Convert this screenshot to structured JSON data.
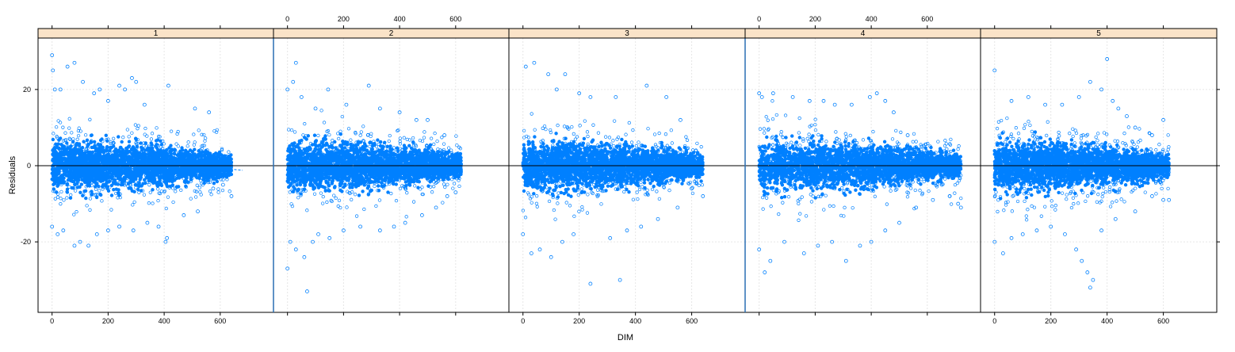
{
  "chart_data": {
    "type": "scatter",
    "xlabel": "DIM",
    "ylabel": "Residuals",
    "xlim": [
      -50,
      790
    ],
    "ylim": [
      -38.5,
      33.5
    ],
    "x_ticks": [
      0,
      200,
      400,
      600
    ],
    "y_ticks": [
      -20,
      0,
      20
    ],
    "reference_line_y": 0,
    "grid": true,
    "colors": {
      "points": "#0080ff",
      "strip": "#fae3c8",
      "grid": "#e6e6e6",
      "panel_border": "#000000",
      "panel_divider_accent": "#2a6fb3"
    },
    "panels": [
      {
        "label": "1",
        "x_max": 640,
        "points": [
          [
            0,
            29
          ],
          [
            3,
            25
          ],
          [
            10,
            20
          ],
          [
            30,
            20
          ],
          [
            55,
            26
          ],
          [
            80,
            27
          ],
          [
            110,
            22
          ],
          [
            150,
            19
          ],
          [
            170,
            20
          ],
          [
            200,
            17
          ],
          [
            240,
            21
          ],
          [
            260,
            20
          ],
          [
            285,
            23
          ],
          [
            300,
            22
          ],
          [
            330,
            16
          ],
          [
            415,
            21
          ],
          [
            510,
            15
          ],
          [
            560,
            14
          ],
          [
            0,
            -16
          ],
          [
            20,
            -18
          ],
          [
            40,
            -17
          ],
          [
            80,
            -21
          ],
          [
            100,
            -20
          ],
          [
            130,
            -21
          ],
          [
            160,
            -18
          ],
          [
            200,
            -17
          ],
          [
            240,
            -16
          ],
          [
            290,
            -17
          ],
          [
            340,
            -15
          ],
          [
            380,
            -16
          ],
          [
            405,
            -20
          ],
          [
            410,
            -19
          ],
          [
            470,
            -13
          ],
          [
            520,
            -12
          ],
          [
            575,
            -6
          ],
          [
            610,
            -5
          ],
          [
            640,
            -8
          ]
        ],
        "trend": [
          [
            0,
            0
          ],
          [
            300,
            0
          ],
          [
            500,
            0
          ],
          [
            620,
            -0.8
          ],
          [
            680,
            -1.2
          ]
        ]
      },
      {
        "label": "2",
        "x_max": 620,
        "points": [
          [
            0,
            20
          ],
          [
            20,
            22
          ],
          [
            30,
            27
          ],
          [
            50,
            18
          ],
          [
            100,
            15
          ],
          [
            145,
            20
          ],
          [
            210,
            16
          ],
          [
            290,
            21
          ],
          [
            330,
            15
          ],
          [
            400,
            14
          ],
          [
            460,
            12
          ],
          [
            500,
            12
          ],
          [
            560,
            8
          ],
          [
            0,
            -27
          ],
          [
            10,
            -20
          ],
          [
            30,
            -22
          ],
          [
            60,
            -24
          ],
          [
            90,
            -20
          ],
          [
            110,
            -18
          ],
          [
            70,
            -33
          ],
          [
            150,
            -19
          ],
          [
            200,
            -17
          ],
          [
            260,
            -16
          ],
          [
            330,
            -17
          ],
          [
            380,
            -16
          ],
          [
            420,
            -15
          ],
          [
            480,
            -13
          ],
          [
            530,
            -11
          ],
          [
            570,
            -8
          ],
          [
            600,
            -7
          ]
        ],
        "trend": [
          [
            0,
            0
          ],
          [
            300,
            0
          ],
          [
            500,
            0
          ],
          [
            580,
            -1.0
          ],
          [
            620,
            -1.5
          ]
        ]
      },
      {
        "label": "3",
        "x_max": 640,
        "points": [
          [
            10,
            26
          ],
          [
            40,
            27
          ],
          [
            90,
            24
          ],
          [
            120,
            20
          ],
          [
            150,
            24
          ],
          [
            200,
            19
          ],
          [
            240,
            18
          ],
          [
            330,
            18
          ],
          [
            440,
            21
          ],
          [
            510,
            18
          ],
          [
            560,
            12
          ],
          [
            0,
            -18
          ],
          [
            30,
            -23
          ],
          [
            60,
            -22
          ],
          [
            100,
            -24
          ],
          [
            140,
            -20
          ],
          [
            180,
            -18
          ],
          [
            240,
            -31
          ],
          [
            310,
            -19
          ],
          [
            345,
            -30
          ],
          [
            370,
            -17
          ],
          [
            420,
            -16
          ],
          [
            480,
            -14
          ],
          [
            550,
            -11
          ],
          [
            600,
            -6
          ],
          [
            640,
            -8
          ]
        ],
        "trend": [
          [
            0,
            0
          ],
          [
            400,
            0
          ],
          [
            560,
            1.0
          ],
          [
            620,
            1.0
          ]
        ]
      },
      {
        "label": "4",
        "x_max": 720,
        "points": [
          [
            0,
            19
          ],
          [
            10,
            18
          ],
          [
            50,
            19
          ],
          [
            120,
            18
          ],
          [
            180,
            17
          ],
          [
            230,
            17
          ],
          [
            270,
            16
          ],
          [
            330,
            16
          ],
          [
            395,
            18
          ],
          [
            420,
            19
          ],
          [
            450,
            17
          ],
          [
            480,
            14
          ],
          [
            530,
            8
          ],
          [
            580,
            5
          ],
          [
            0,
            -22
          ],
          [
            20,
            -28
          ],
          [
            40,
            -25
          ],
          [
            90,
            -20
          ],
          [
            160,
            -23
          ],
          [
            210,
            -21
          ],
          [
            260,
            -20
          ],
          [
            310,
            -25
          ],
          [
            360,
            -21
          ],
          [
            400,
            -20
          ],
          [
            450,
            -17
          ],
          [
            500,
            -15
          ],
          [
            560,
            -11
          ],
          [
            620,
            -9
          ],
          [
            680,
            -8
          ],
          [
            710,
            -10
          ],
          [
            720,
            -11
          ]
        ],
        "trend": [
          [
            0,
            0
          ],
          [
            400,
            0
          ],
          [
            550,
            -2.0
          ],
          [
            720,
            -2.5
          ]
        ]
      },
      {
        "label": "5",
        "x_max": 620,
        "points": [
          [
            0,
            25
          ],
          [
            60,
            17
          ],
          [
            120,
            18
          ],
          [
            180,
            16
          ],
          [
            240,
            16
          ],
          [
            300,
            18
          ],
          [
            340,
            22
          ],
          [
            380,
            20
          ],
          [
            400,
            28
          ],
          [
            420,
            17
          ],
          [
            440,
            15
          ],
          [
            470,
            13
          ],
          [
            500,
            10
          ],
          [
            560,
            8
          ],
          [
            600,
            12
          ],
          [
            0,
            -20
          ],
          [
            30,
            -23
          ],
          [
            60,
            -19
          ],
          [
            100,
            -18
          ],
          [
            150,
            -17
          ],
          [
            200,
            -16
          ],
          [
            250,
            -18
          ],
          [
            290,
            -22
          ],
          [
            310,
            -25
          ],
          [
            330,
            -28
          ],
          [
            340,
            -32
          ],
          [
            350,
            -30
          ],
          [
            380,
            -17
          ],
          [
            430,
            -14
          ],
          [
            500,
            -12
          ],
          [
            560,
            -8
          ],
          [
            600,
            -9
          ],
          [
            620,
            -9
          ]
        ],
        "trend": [
          [
            0,
            0
          ],
          [
            300,
            0
          ],
          [
            450,
            0.5
          ],
          [
            620,
            0.5
          ]
        ]
      }
    ]
  }
}
